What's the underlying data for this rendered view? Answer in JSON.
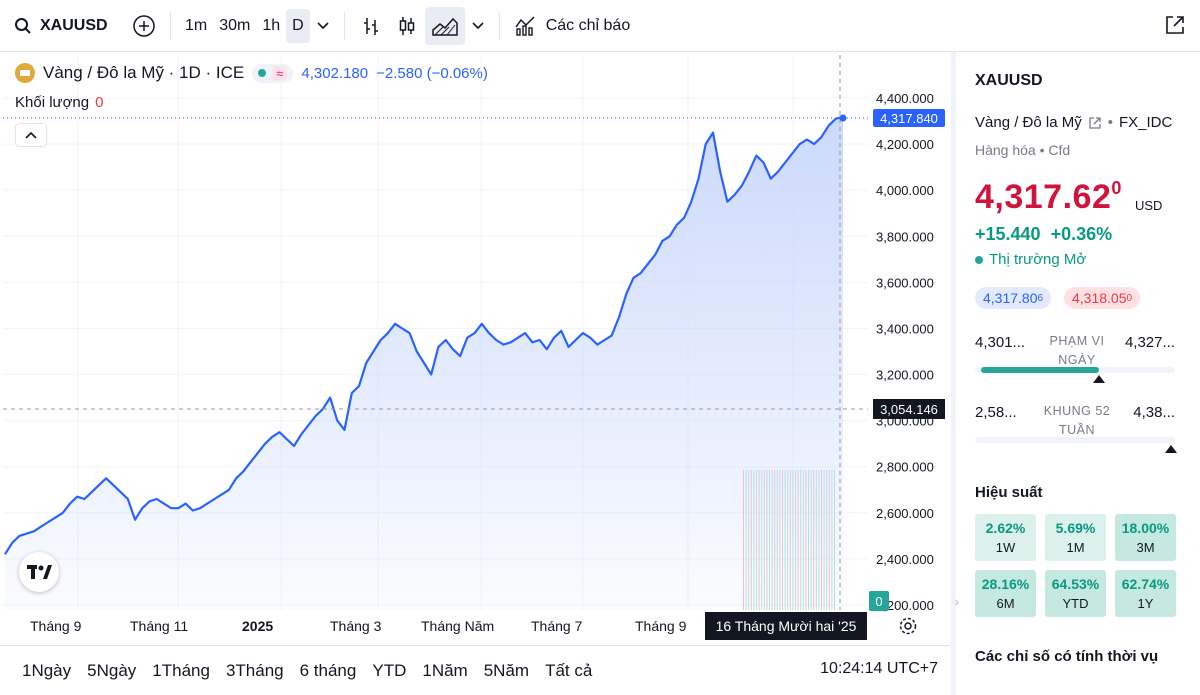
{
  "toolbar": {
    "symbol": "XAUUSD",
    "intervals": [
      "1m",
      "30m",
      "1h",
      "D"
    ],
    "active_interval": "D",
    "indicators_label": "Các chỉ báo"
  },
  "legend": {
    "title": "Vàng / Đô la Mỹ · 1D · ICE",
    "approx": "≈",
    "price": "4,302.180",
    "change": "−2.580 (−0.06%)",
    "volume_label": "Khối lượng",
    "volume_value": "0"
  },
  "price_axis": {
    "ticks": [
      "4,400.000",
      "4,200.000",
      "4,000.000",
      "3,800.000",
      "3,600.000",
      "3,400.000",
      "3,200.000",
      "3,000.000",
      "2,800.000",
      "2,600.000",
      "2,400.000",
      "2,200.000"
    ],
    "current_price_badge": "4,317.840",
    "crosshair_price": "3,054.146",
    "volume_badge": "0"
  },
  "time_axis": {
    "labels": [
      "Tháng 9",
      "Tháng 11",
      "2025",
      "Tháng 3",
      "Tháng Năm",
      "Tháng 7",
      "Tháng 9"
    ],
    "crosshair_date": "16 Tháng Mười hai '25"
  },
  "ranges": [
    "1Ngày",
    "5Ngày",
    "1Tháng",
    "3Tháng",
    "6 tháng",
    "YTD",
    "1Năm",
    "5Năm",
    "Tất cả"
  ],
  "clock": "10:24:14 UTC+7",
  "panel": {
    "symbol": "XAUUSD",
    "name": "Vàng / Đô la Mỹ",
    "source": "FX_IDC",
    "category": "Hàng hóa • Cfd",
    "price_main": "4,317.62",
    "price_sup": "0",
    "currency": "USD",
    "change": "+15.440  +0.36%",
    "market_status": "Thị trường Mở",
    "bid_main": "4,317.80",
    "bid_sup": "6",
    "ask_main": "4,318.05",
    "ask_sup": "0",
    "day_range": {
      "low": "4,301...",
      "label": "PHẠM VI NGÀY",
      "high": "4,327..."
    },
    "week52_range": {
      "low": "2,58...",
      "label": "KHUNG 52 TUẦN",
      "high": "4,38..."
    },
    "day_range_position": 0.62,
    "week52_position": 0.98,
    "performance_title": "Hiệu suất",
    "performance": [
      {
        "value": "2.62%",
        "label": "1W"
      },
      {
        "value": "5.69%",
        "label": "1M"
      },
      {
        "value": "18.00%",
        "label": "3M"
      },
      {
        "value": "28.16%",
        "label": "6M"
      },
      {
        "value": "64.53%",
        "label": "YTD"
      },
      {
        "value": "62.74%",
        "label": "1Y"
      }
    ],
    "seasonal_title": "Các chỉ số có tính thời vụ"
  },
  "chart_data": {
    "type": "area",
    "ylim": [
      2200,
      4450
    ],
    "line_color": "#2962ff",
    "area_color": "#c9d7fb",
    "grid": true,
    "series": [
      {
        "values": [
          2420,
          2470,
          2500,
          2510,
          2520,
          2540,
          2560,
          2580,
          2600,
          2640,
          2670,
          2660,
          2690,
          2720,
          2750,
          2720,
          2690,
          2660,
          2570,
          2620,
          2650,
          2660,
          2640,
          2620,
          2620,
          2640,
          2610,
          2620,
          2640,
          2660,
          2680,
          2700,
          2750,
          2780,
          2820,
          2860,
          2900,
          2930,
          2950,
          2920,
          2890,
          2940,
          2980,
          3020,
          3050,
          3100,
          3000,
          2960,
          3120,
          3150,
          3250,
          3300,
          3350,
          3380,
          3420,
          3400,
          3380,
          3300,
          3250,
          3200,
          3320,
          3350,
          3310,
          3280,
          3360,
          3380,
          3420,
          3380,
          3350,
          3330,
          3340,
          3360,
          3380,
          3340,
          3350,
          3310,
          3360,
          3390,
          3320,
          3350,
          3380,
          3360,
          3330,
          3350,
          3370,
          3450,
          3550,
          3620,
          3640,
          3680,
          3720,
          3780,
          3800,
          3850,
          3880,
          3950,
          4050,
          4200,
          4250,
          4080,
          3950,
          3980,
          4020,
          4080,
          4150,
          4120,
          4050,
          4080,
          4120,
          4160,
          4200,
          4220,
          4200,
          4230,
          4280,
          4310,
          4318
        ]
      }
    ]
  }
}
